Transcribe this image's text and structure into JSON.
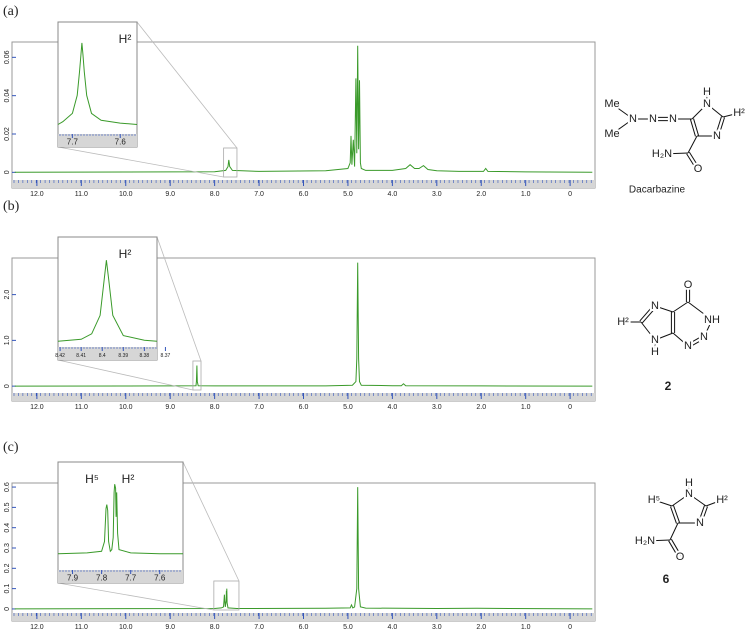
{
  "chart_data": [
    {
      "type": "line",
      "panel_label": "(a)",
      "compound": "Dacarbazine",
      "structure_atoms": [
        "Me",
        "Me",
        "N",
        "N",
        "N",
        "N",
        "H",
        "H²",
        "N",
        "H₂N",
        "O"
      ],
      "color": "#3a9a2a",
      "x": [
        12.5,
        8.0,
        7.75,
        7.7,
        7.68,
        7.66,
        7.6,
        7.0,
        5.5,
        5.0,
        4.95,
        4.93,
        4.91,
        4.88,
        4.85,
        4.82,
        4.8,
        4.78,
        4.76,
        4.74,
        4.72,
        4.7,
        4.6,
        4.0,
        3.7,
        3.6,
        3.5,
        3.4,
        3.3,
        3.2,
        3.0,
        2.5,
        1.95,
        1.9,
        1.85,
        1.0,
        -0.5
      ],
      "values": [
        0,
        0.0003,
        0.001,
        0.003,
        0.0065,
        0.003,
        0.001,
        0.0005,
        0.0008,
        0.002,
        0.005,
        0.019,
        0.004,
        0.017,
        0.003,
        0.049,
        0.01,
        0.066,
        0.012,
        0.048,
        0.005,
        0.002,
        0.001,
        0.001,
        0.002,
        0.004,
        0.002,
        0.002,
        0.0035,
        0.0015,
        0.0008,
        0.0005,
        0.0005,
        0.002,
        0.0005,
        0.0002,
        0
      ],
      "xlim": [
        12.56,
        -0.56
      ],
      "xticks": [
        {
          "value": 12,
          "label": "12.0"
        },
        {
          "value": 11,
          "label": "11.0"
        },
        {
          "value": 10,
          "label": "10.0"
        },
        {
          "value": 9,
          "label": "9.0"
        },
        {
          "value": 8,
          "label": "8.0"
        },
        {
          "value": 7,
          "label": "7.0"
        },
        {
          "value": 6,
          "label": "6.0"
        },
        {
          "value": 5,
          "label": "5.0"
        },
        {
          "value": 4,
          "label": "4.0"
        },
        {
          "value": 3,
          "label": "3.0"
        },
        {
          "value": 2,
          "label": "2.0"
        },
        {
          "value": 1,
          "label": "1.0"
        },
        0
      ],
      "ylim": [
        -0.004,
        0.068
      ],
      "yticks": [
        0,
        0.02,
        0.04,
        0.06
      ],
      "inset": {
        "labels": [
          "H²"
        ],
        "xlim": [
          7.73,
          7.565
        ],
        "xticks": [
          7.7,
          7.6
        ],
        "ylim": [
          0,
          0.0068
        ],
        "x": [
          7.73,
          7.72,
          7.7,
          7.69,
          7.685,
          7.682,
          7.68,
          7.678,
          7.675,
          7.67,
          7.66,
          7.64,
          7.6,
          7.565
        ],
        "values": [
          0.0004,
          0.0006,
          0.0012,
          0.0025,
          0.0042,
          0.0055,
          0.0063,
          0.0055,
          0.0042,
          0.0025,
          0.0012,
          0.0007,
          0.0005,
          0.0004
        ]
      }
    },
    {
      "type": "line",
      "panel_label": "(b)",
      "compound": "2",
      "structure_atoms": [
        "H²",
        "N",
        "N",
        "H",
        "O",
        "NH",
        "N",
        "N"
      ],
      "color": "#3a9a2a",
      "x": [
        12.5,
        9.0,
        8.42,
        8.41,
        8.4,
        8.39,
        8.37,
        8.0,
        5.5,
        4.9,
        4.82,
        4.8,
        4.78,
        4.76,
        4.74,
        4.7,
        4.0,
        3.8,
        3.75,
        3.7,
        2.0,
        -0.5
      ],
      "values": [
        0,
        0.005,
        0.01,
        0.1,
        0.45,
        0.1,
        0.01,
        0.005,
        0.005,
        0.02,
        0.1,
        0.6,
        2.7,
        0.6,
        0.1,
        0.02,
        0.01,
        0.01,
        0.05,
        0.01,
        0.005,
        0
      ],
      "xlim": [
        12.56,
        -0.56
      ],
      "xticks": [
        {
          "value": 12,
          "label": "12.0"
        },
        {
          "value": 11,
          "label": "11.0"
        },
        {
          "value": 10,
          "label": "10.0"
        },
        {
          "value": 9,
          "label": "9.0"
        },
        {
          "value": 8,
          "label": "8.0"
        },
        {
          "value": 7,
          "label": "7.0"
        },
        {
          "value": 6,
          "label": "6.0"
        },
        {
          "value": 5,
          "label": "5.0"
        },
        {
          "value": 4,
          "label": "4.0"
        },
        {
          "value": 3,
          "label": "3.0"
        },
        {
          "value": 2,
          "label": "2.0"
        },
        {
          "value": 1,
          "label": "1.0"
        },
        0
      ],
      "ylim": [
        -0.15,
        2.8
      ],
      "yticks": [
        0,
        {
          "value": 1,
          "label": "1.0"
        },
        {
          "value": 2,
          "label": "2.0"
        }
      ],
      "inset": {
        "labels": [
          "H²"
        ],
        "xlim": [
          8.421,
          8.374
        ],
        "xticks": [
          8.42,
          8.41,
          8.4,
          8.39,
          8.38,
          8.37
        ],
        "ylim": [
          0,
          0.5
        ],
        "x": [
          8.421,
          8.41,
          8.405,
          8.401,
          8.399,
          8.398,
          8.397,
          8.395,
          8.39,
          8.38,
          8.374
        ],
        "values": [
          0.01,
          0.02,
          0.05,
          0.15,
          0.35,
          0.45,
          0.35,
          0.15,
          0.04,
          0.015,
          0.01
        ]
      }
    },
    {
      "type": "line",
      "panel_label": "(c)",
      "compound": "6",
      "structure_atoms": [
        "H⁵",
        "N",
        "H",
        "H²",
        "N",
        "H₂N",
        "O"
      ],
      "color": "#3a9a2a",
      "x": [
        12.5,
        8.0,
        7.85,
        7.8,
        7.79,
        7.78,
        7.77,
        7.76,
        7.74,
        7.735,
        7.73,
        7.725,
        7.72,
        7.7,
        7.5,
        5.5,
        4.95,
        4.92,
        4.89,
        4.85,
        4.8,
        4.78,
        4.76,
        4.72,
        4.6,
        3.0,
        2.1,
        -0.5
      ],
      "values": [
        0,
        0.002,
        0.005,
        0.01,
        0.04,
        0.07,
        0.04,
        0.01,
        0.04,
        0.09,
        0.05,
        0.1,
        0.03,
        0.005,
        0.002,
        0.003,
        0.005,
        0.02,
        0.005,
        0.01,
        0.1,
        0.6,
        0.1,
        0.01,
        0.004,
        0.002,
        0.003,
        0
      ],
      "xlim": [
        12.56,
        -0.56
      ],
      "xticks": [
        {
          "value": 12,
          "label": "12.0"
        },
        {
          "value": 11,
          "label": "11.0"
        },
        {
          "value": 10,
          "label": "10.0"
        },
        {
          "value": 9,
          "label": "9.0"
        },
        {
          "value": 8,
          "label": "8.0"
        },
        {
          "value": 7,
          "label": "7.0"
        },
        {
          "value": 6,
          "label": "6.0"
        },
        {
          "value": 5,
          "label": "5.0"
        },
        {
          "value": 4,
          "label": "4.0"
        },
        {
          "value": 3,
          "label": "3.0"
        },
        {
          "value": 2,
          "label": "2.0"
        },
        {
          "value": 1,
          "label": "1.0"
        },
        0
      ],
      "ylim": [
        -0.02,
        0.62
      ],
      "yticks": [
        0,
        0.1,
        0.2,
        0.3,
        0.4,
        0.5,
        0.6
      ],
      "inset": {
        "labels": [
          "H⁵",
          "H²"
        ],
        "xlim": [
          7.95,
          7.52
        ],
        "xticks": [
          7.9,
          7.8,
          7.7,
          7.6
        ],
        "ylim": [
          0,
          0.11
        ],
        "x": [
          7.95,
          7.85,
          7.8,
          7.79,
          7.785,
          7.782,
          7.779,
          7.776,
          7.77,
          7.765,
          7.76,
          7.757,
          7.755,
          7.752,
          7.75,
          7.748,
          7.745,
          7.74,
          7.7,
          7.6,
          7.52
        ],
        "values": [
          0.015,
          0.016,
          0.018,
          0.03,
          0.07,
          0.075,
          0.068,
          0.03,
          0.018,
          0.02,
          0.035,
          0.09,
          0.1,
          0.095,
          0.06,
          0.09,
          0.04,
          0.02,
          0.016,
          0.015,
          0.015
        ]
      }
    }
  ]
}
